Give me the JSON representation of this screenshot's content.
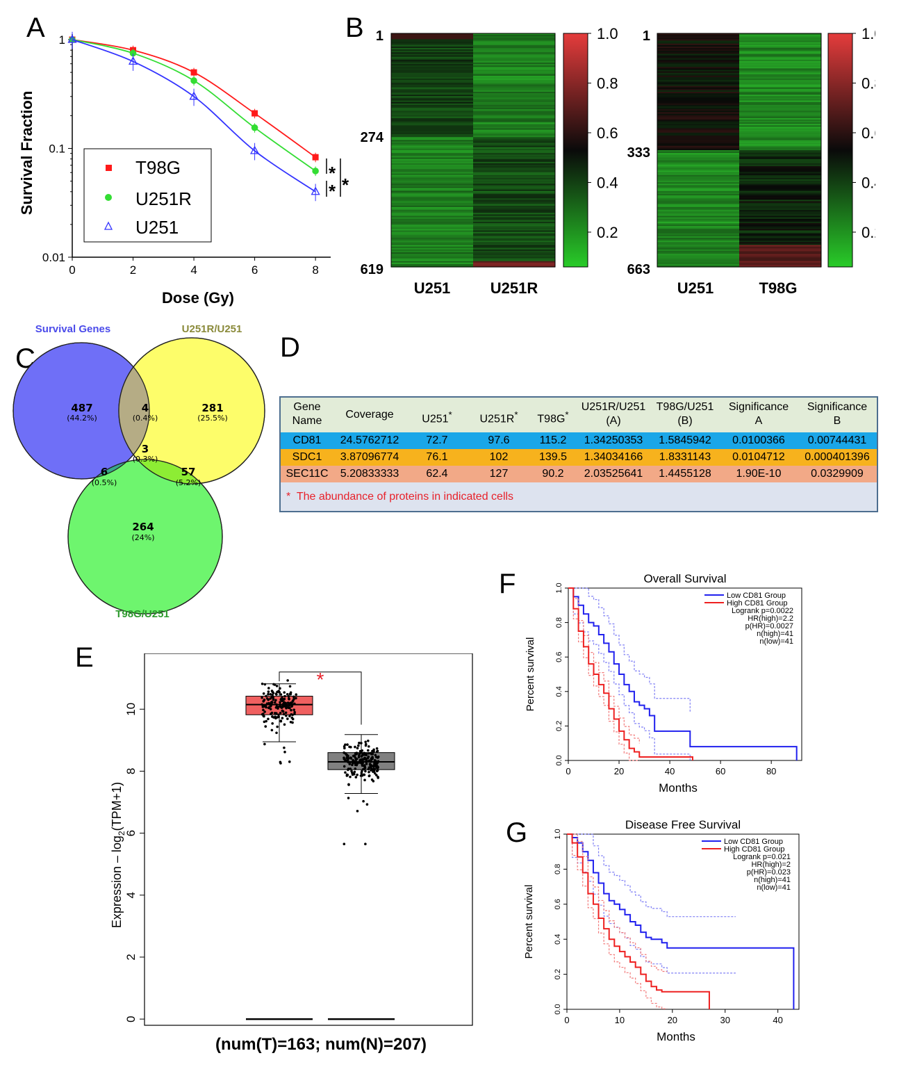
{
  "panels": {
    "A": "A",
    "B": "B",
    "C": "C",
    "D": "D",
    "E": "E",
    "F": "F",
    "G": "G"
  },
  "panelA": {
    "ylabel": "Survival Fraction",
    "xlabel": "Dose (Gy)",
    "yticks": [
      "1",
      "0.1",
      "0.01"
    ],
    "xticks": [
      "0",
      "2",
      "4",
      "6",
      "8"
    ],
    "sig1": "*",
    "sig2": "*",
    "sig3": "*",
    "legend": [
      "T98G",
      "U251R",
      "U251"
    ],
    "colors": {
      "T98G": "#ff1a1a",
      "U251R": "#33dd33",
      "U251": "#3333ff"
    }
  },
  "panelB": {
    "left": {
      "yticks": [
        "1",
        "274",
        "619"
      ],
      "xlabels": [
        "U251",
        "U251R"
      ]
    },
    "right": {
      "yticks": [
        "1",
        "333",
        "663"
      ],
      "xlabels": [
        "U251",
        "T98G"
      ]
    },
    "colorbar": [
      "1.0",
      "0.8",
      "0.6",
      "0.4",
      "0.2"
    ]
  },
  "panelC": {
    "sets": {
      "survival": "Survival Genes",
      "u251r": "U251R/U251",
      "t98g": "T98G/U251"
    },
    "regions": {
      "only_survival": {
        "n": "487",
        "pct": "(44.2%)"
      },
      "survival_u251r": {
        "n": "4",
        "pct": "(0.4%)"
      },
      "only_u251r": {
        "n": "281",
        "pct": "(25.5%)"
      },
      "all": {
        "n": "3",
        "pct": "(0.3%)"
      },
      "survival_t98g": {
        "n": "6",
        "pct": "(0.5%)"
      },
      "u251r_t98g": {
        "n": "57",
        "pct": "(5.2%)"
      },
      "only_t98g": {
        "n": "264",
        "pct": "(24%)"
      }
    }
  },
  "panelD": {
    "headers": {
      "gene1": "Gene",
      "gene2": "Name",
      "coverage": "Coverage",
      "u251": "U251",
      "u251r": "U251R",
      "t98g": "T98G",
      "star": "*",
      "ratioA1": "U251R/U251",
      "ratioA2": "(A)",
      "ratioB1": "T98G/U251",
      "ratioB2": "(B)",
      "sigA1": "Significance",
      "sigA2": "A",
      "sigB1": "Significance",
      "sigB2": "B"
    },
    "rows": [
      [
        "CD81",
        "24.5762712",
        "72.7",
        "97.6",
        "115.2",
        "1.34250353",
        "1.5845942",
        "0.0100366",
        "0.00744431"
      ],
      [
        "SDC1",
        "3.87096774",
        "76.1",
        "102",
        "139.5",
        "1.34034166",
        "1.8331143",
        "0.0104712",
        "0.000401396"
      ],
      [
        "SEC11C",
        "5.20833333",
        "62.4",
        "127",
        "90.2",
        "2.03525641",
        "1.4455128",
        "1.90E-10",
        "0.0329909"
      ]
    ],
    "row_colors": [
      "#1aa6e8",
      "#f7b21d",
      "#f2a987"
    ],
    "note_star": "*",
    "note": "The abundance of proteins in indicated cells"
  },
  "panelE": {
    "ylabel_pre": "Expression – log",
    "ylabel_sub": "2",
    "ylabel_post": "(TPM+1)",
    "yticks": [
      "0",
      "2",
      "4",
      "6",
      "8",
      "10"
    ],
    "sig": "*",
    "footer": "(num(T)=163; num(N)=207)"
  },
  "chart_data": [
    {
      "type": "line",
      "title": "",
      "xlabel": "Dose (Gy)",
      "ylabel": "Survival Fraction",
      "yscale": "log",
      "ylim": [
        0.01,
        1
      ],
      "xlim": [
        0,
        8.5
      ],
      "series": [
        {
          "name": "T98G",
          "x": [
            0,
            2,
            4,
            6,
            8
          ],
          "y": [
            1,
            0.8,
            0.5,
            0.21,
            0.083
          ]
        },
        {
          "name": "U251R",
          "x": [
            0,
            2,
            4,
            6,
            8
          ],
          "y": [
            1,
            0.75,
            0.42,
            0.155,
            0.062
          ]
        },
        {
          "name": "U251",
          "x": [
            0,
            2,
            4,
            6,
            8
          ],
          "y": [
            1,
            0.63,
            0.3,
            0.095,
            0.04
          ]
        }
      ]
    },
    {
      "type": "line",
      "title": "Overall Survival",
      "xlabel": "Months",
      "ylabel": "Percent survival",
      "xticks": [
        "0",
        "20",
        "40",
        "60",
        "80"
      ],
      "yticks": [
        "0.0",
        "0.2",
        "0.4",
        "0.6",
        "0.8",
        "1.0"
      ],
      "xlim": [
        0,
        92
      ],
      "ylim": [
        0,
        1
      ],
      "legend": [
        "Low CD81 Group",
        "High CD81 Group"
      ],
      "stats": [
        "Logrank p=0.0022",
        "HR(high)=2.2",
        "p(HR)=0.0027",
        "n(high)=41",
        "n(low)=41"
      ],
      "series": [
        {
          "name": "Low CD81 Group",
          "x": [
            0,
            2,
            4,
            6,
            8,
            10,
            12,
            14,
            16,
            18,
            20,
            22,
            24,
            26,
            28,
            30,
            32,
            34,
            48,
            90
          ],
          "y": [
            1.0,
            0.95,
            0.9,
            0.85,
            0.8,
            0.78,
            0.73,
            0.68,
            0.63,
            0.56,
            0.5,
            0.44,
            0.4,
            0.34,
            0.32,
            0.3,
            0.26,
            0.17,
            0.08,
            0.0
          ]
        },
        {
          "name": "High CD81 Group",
          "x": [
            0,
            2,
            4,
            6,
            8,
            10,
            12,
            14,
            16,
            18,
            20,
            22,
            24,
            26,
            28,
            49
          ],
          "y": [
            1.0,
            0.88,
            0.75,
            0.66,
            0.56,
            0.5,
            0.44,
            0.39,
            0.3,
            0.24,
            0.17,
            0.12,
            0.07,
            0.05,
            0.02,
            0.0
          ]
        }
      ]
    },
    {
      "type": "line",
      "title": "Disease Free Survival",
      "xlabel": "Months",
      "ylabel": "Percent survival",
      "xticks": [
        "0",
        "10",
        "20",
        "30",
        "40"
      ],
      "yticks": [
        "0.0",
        "0.2",
        "0.4",
        "0.6",
        "0.8",
        "1.0"
      ],
      "xlim": [
        0,
        44
      ],
      "ylim": [
        0,
        1
      ],
      "legend": [
        "Low CD81 Group",
        "High CD81 Group"
      ],
      "stats": [
        "Logrank p=0.021",
        "HR(high)=2",
        "p(HR)=0.023",
        "n(high)=41",
        "n(low)=41"
      ],
      "series": [
        {
          "name": "Low CD81 Group",
          "x": [
            0,
            1,
            2,
            3,
            4,
            5,
            6,
            7,
            8,
            9,
            10,
            11,
            12,
            13,
            14,
            15,
            16,
            17,
            18,
            19,
            43
          ],
          "y": [
            1.0,
            0.98,
            0.95,
            0.9,
            0.85,
            0.78,
            0.72,
            0.66,
            0.62,
            0.6,
            0.57,
            0.54,
            0.5,
            0.48,
            0.44,
            0.41,
            0.4,
            0.4,
            0.38,
            0.35,
            0.0
          ]
        },
        {
          "name": "High CD81 Group",
          "x": [
            0,
            1,
            2,
            3,
            4,
            5,
            6,
            7,
            8,
            9,
            10,
            11,
            12,
            13,
            14,
            15,
            16,
            17,
            18,
            27
          ],
          "y": [
            1.0,
            0.95,
            0.87,
            0.78,
            0.66,
            0.6,
            0.52,
            0.46,
            0.4,
            0.36,
            0.33,
            0.3,
            0.27,
            0.24,
            0.2,
            0.16,
            0.13,
            0.11,
            0.1,
            0.0
          ]
        }
      ]
    },
    {
      "type": "box",
      "ylabel": "Expression - log2(TPM+1)",
      "ylim": [
        -0.2,
        11.8
      ],
      "groups": [
        {
          "name": "T",
          "n": 163,
          "median": 10.15,
          "q1": 9.82,
          "q3": 10.42,
          "whisker_low": 8.95,
          "whisker_high": 10.82,
          "color": "#f06060"
        },
        {
          "name": "N",
          "n": 207,
          "median": 8.3,
          "q1": 8.05,
          "q3": 8.6,
          "whisker_low": 7.28,
          "whisker_high": 9.18,
          "color": "#808080"
        }
      ]
    }
  ]
}
